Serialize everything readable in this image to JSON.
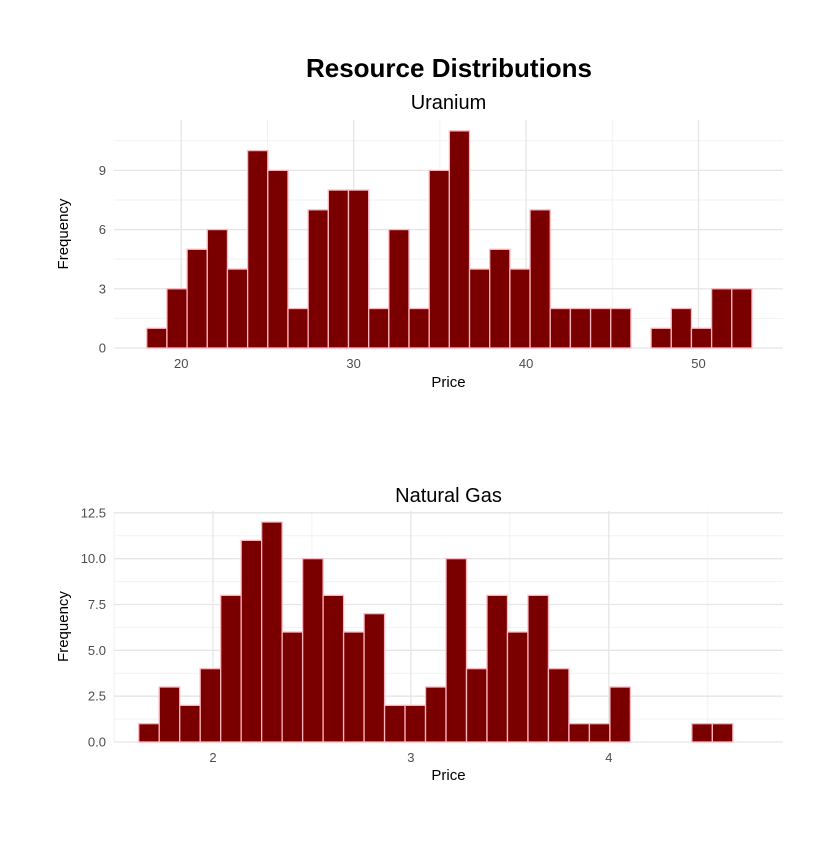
{
  "title": "Resource Distributions",
  "colors": {
    "bar_fill": "#7a0000",
    "bar_stroke": "#ffb6c1",
    "grid_major": "#e6e6e6",
    "grid_minor": "#f2f2f2",
    "tick_text": "#4d4d4d",
    "background": "#ffffff"
  },
  "chart_data": [
    {
      "type": "bar",
      "subtitle": "Uranium",
      "xlabel": "Price",
      "ylabel": "Frequency",
      "xlim": [
        16.1,
        54.9
      ],
      "ylim": [
        0,
        11.55
      ],
      "xticks": [
        20,
        30,
        40,
        50
      ],
      "yticks": [
        0,
        3,
        6,
        9
      ],
      "ytick_labels": [
        "0",
        "3",
        "6",
        "9"
      ],
      "bin_start": 18,
      "bin_width": 1.17,
      "values": [
        1,
        3,
        5,
        6,
        4,
        10,
        9,
        2,
        7,
        8,
        8,
        2,
        6,
        2,
        9,
        11,
        4,
        5,
        4,
        7,
        2,
        2,
        2,
        2,
        0,
        1,
        2,
        1,
        3,
        3
      ],
      "grid": true,
      "legend": "none"
    },
    {
      "type": "bar",
      "subtitle": "Natural Gas",
      "xlabel": "Price",
      "ylabel": "Frequency",
      "xlim": [
        1.5,
        4.88
      ],
      "ylim": [
        0,
        12.6
      ],
      "xticks": [
        2,
        3,
        4
      ],
      "yticks": [
        0,
        2.5,
        5,
        7.5,
        10,
        12.5
      ],
      "ytick_labels": [
        "0.0",
        "2.5",
        "5.0",
        "7.5",
        "10.0",
        "12.5"
      ],
      "bin_start": 1.625,
      "bin_width": 0.1035,
      "values": [
        1,
        3,
        2,
        4,
        8,
        11,
        12,
        6,
        10,
        8,
        6,
        7,
        2,
        2,
        3,
        10,
        4,
        8,
        6,
        8,
        4,
        1,
        1,
        3,
        0,
        0,
        0,
        1,
        1
      ],
      "grid": true,
      "legend": "none"
    }
  ]
}
